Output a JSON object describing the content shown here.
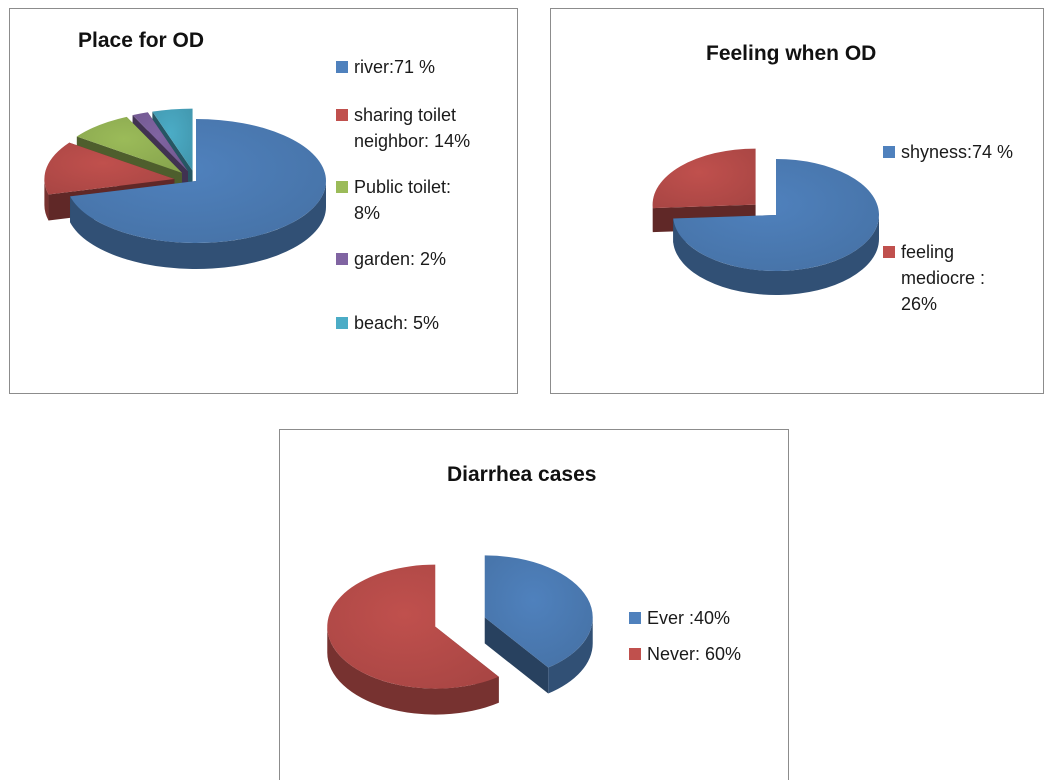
{
  "chart_data": [
    {
      "type": "pie",
      "title": "Place for OD",
      "slices": [
        {
          "label": "river:71 %",
          "lines": [
            "river:71 %"
          ],
          "value": 71,
          "color": "#4f81bd"
        },
        {
          "label": "sharing toilet neighbor: 14%",
          "lines": [
            "sharing toilet",
            "neighbor: 14%"
          ],
          "value": 14,
          "color": "#c0504d"
        },
        {
          "label": "Public toilet: 8%",
          "lines": [
            "Public toilet:",
            "8%"
          ],
          "value": 8,
          "color": "#9bbb59"
        },
        {
          "label": "garden: 2%",
          "lines": [
            "garden: 2%"
          ],
          "value": 2,
          "color": "#8064a2"
        },
        {
          "label": "beach: 5%",
          "lines": [
            "beach: 5%"
          ],
          "value": 5,
          "color": "#4bacc6"
        }
      ],
      "legend_position": "right"
    },
    {
      "type": "pie",
      "title": "Feeling when OD",
      "slices": [
        {
          "label": "shyness:74 %",
          "lines": [
            "shyness:74 %"
          ],
          "value": 74,
          "color": "#4f81bd"
        },
        {
          "label": "feeling mediocre : 26%",
          "lines": [
            "feeling",
            "mediocre :",
            "26%"
          ],
          "value": 26,
          "color": "#c0504d"
        }
      ],
      "legend_position": "right"
    },
    {
      "type": "pie",
      "title": "Diarrhea cases",
      "slices": [
        {
          "label": "Ever :40%",
          "lines": [
            "Ever :40%"
          ],
          "value": 40,
          "color": "#4f81bd"
        },
        {
          "label": "Never: 60%",
          "lines": [
            "Never: 60%"
          ],
          "value": 60,
          "color": "#c0504d"
        }
      ],
      "legend_position": "right"
    }
  ]
}
